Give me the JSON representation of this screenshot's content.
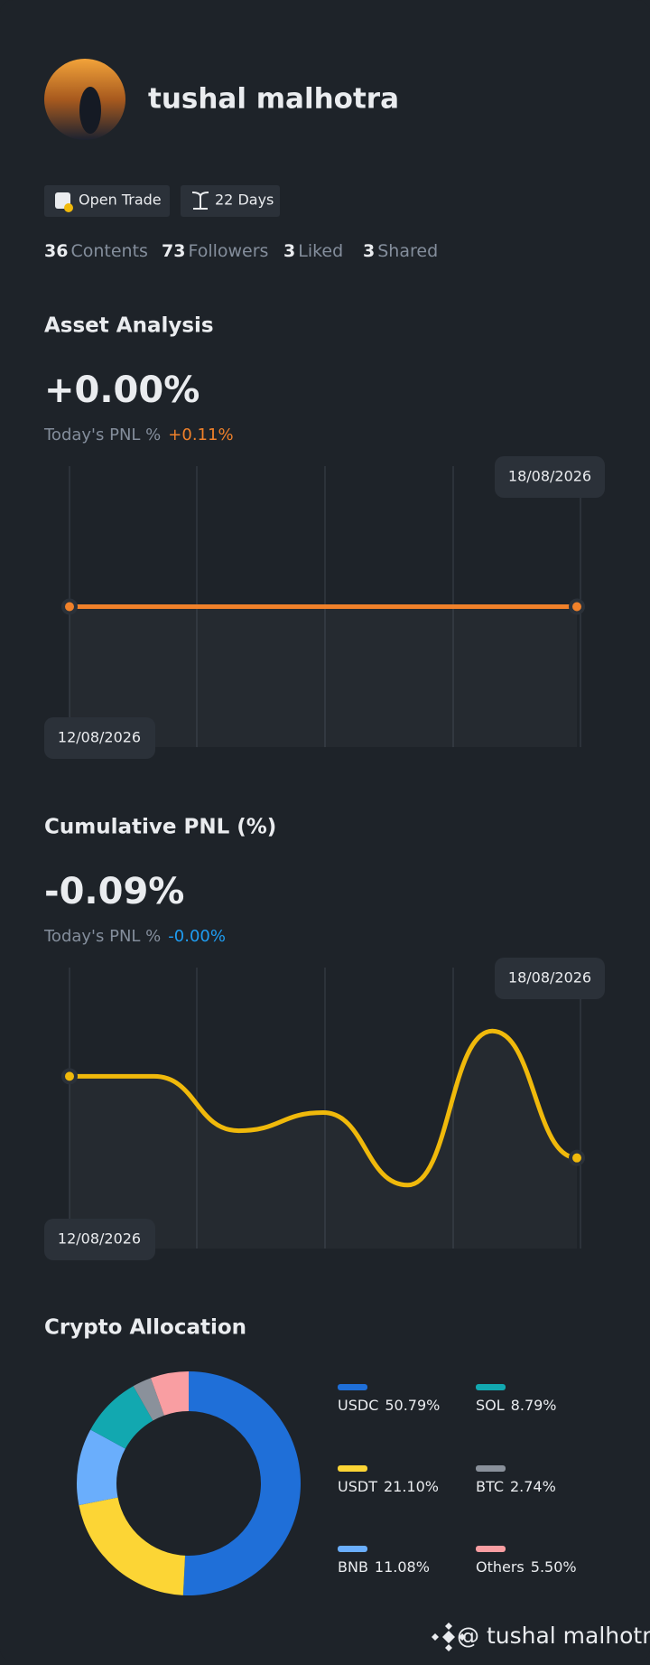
{
  "profile": {
    "name": "tushal malhotra",
    "badges": [
      "Open Trade",
      "22 Days"
    ],
    "stats": [
      {
        "value": 36,
        "label": "Contents"
      },
      {
        "value": 73,
        "label": "Followers"
      },
      {
        "value": 3,
        "label": "Liked"
      },
      {
        "value": 3,
        "label": "Shared"
      }
    ]
  },
  "chart_data": [
    {
      "type": "line",
      "title": "Asset Analysis",
      "headline": "+0.00%",
      "headline_color": "#eaecef",
      "pnl_label": "Today's PNL %",
      "pnl_value": "+0.11%",
      "pnl_color": "#f0812a",
      "color": "#f0812a",
      "x": [
        "12/08/2026",
        "18/08/2026"
      ],
      "values": [
        0,
        0
      ],
      "ylim": [
        -0.1,
        0.1
      ]
    },
    {
      "type": "line",
      "title": "Cumulative PNL (%)",
      "headline": "-0.09%",
      "headline_color": "#1e9df2",
      "pnl_label": "Today's PNL %",
      "pnl_value": "-0.00%",
      "pnl_color": "#1e9df2",
      "color": "#f0b90b",
      "x": [
        "12/08/2026",
        null,
        null,
        null,
        null,
        null,
        "18/08/2026"
      ],
      "values": [
        0,
        0,
        -0.06,
        -0.04,
        -0.12,
        0.05,
        -0.09
      ],
      "ylim": [
        -0.19,
        0.12
      ]
    },
    {
      "type": "pie",
      "title": "Crypto Allocation",
      "donut": true,
      "categories": [
        "USDC",
        "USDT",
        "BNB",
        "SOL",
        "BTC",
        "Others"
      ],
      "values": [
        50.79,
        21.1,
        11.08,
        8.79,
        2.74,
        5.5
      ],
      "value_labels": [
        "50.79%",
        "21.10%",
        "11.08%",
        "8.79%",
        "2.74%",
        "5.50%"
      ],
      "colors": [
        "#1f6fd8",
        "#fcd535",
        "#6aaefc",
        "#12a8b0",
        "#8a919b",
        "#f99ea2"
      ]
    }
  ],
  "watermark": "@ tushal malhotra"
}
